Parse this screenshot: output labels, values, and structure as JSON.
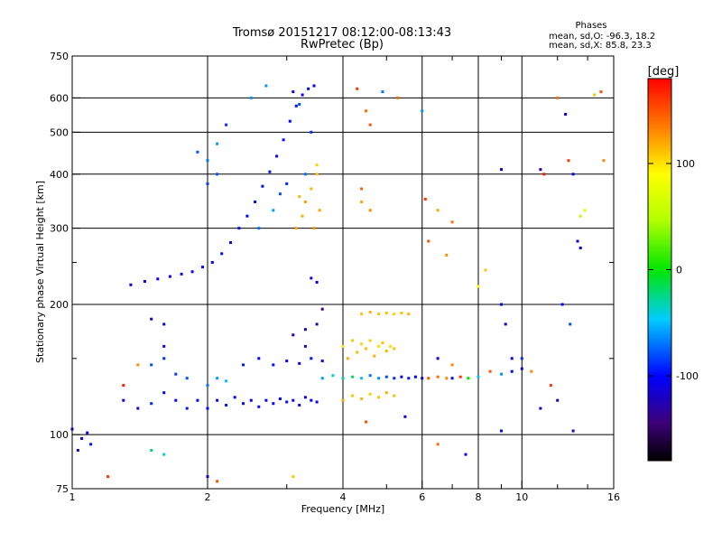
{
  "chart_data": {
    "type": "scatter",
    "title": "Tromsø 20151217 08:12:00-08:13:43",
    "subtitle": "RwPretec (Bp)",
    "xlabel": "Frequency [MHz]",
    "ylabel": "Stationary phase Virtual Height [km]",
    "x_scale": "log",
    "y_scale": "log",
    "xlim": [
      1,
      16
    ],
    "ylim": [
      75,
      750
    ],
    "x_ticks": [
      1,
      2,
      4,
      6,
      8,
      10,
      16
    ],
    "x_tick_labels": [
      "1",
      "2",
      "4",
      "6",
      "8",
      "10",
      "16"
    ],
    "x_grid": [
      2,
      4,
      6,
      8,
      10
    ],
    "y_ticks": [
      75,
      100,
      200,
      300,
      400,
      500,
      600,
      750
    ],
    "y_tick_labels": [
      "75",
      "100",
      "200",
      "300",
      "400",
      "500",
      "600",
      "750"
    ],
    "y_grid": [
      100,
      200,
      300,
      400,
      500,
      600
    ],
    "grid": true,
    "info": {
      "heading": "Phases",
      "line1": "mean, sd,O:  -96.3, 18.2",
      "line2": "mean, sd,X:  85.8, 23.3"
    },
    "colorbar": {
      "label": "[deg]",
      "range": [
        -180,
        180
      ],
      "ticks": [
        100,
        0,
        -100
      ],
      "tick_labels": [
        "100",
        "0",
        "-100"
      ]
    },
    "series": [
      {
        "points": [
          [
            1.0,
            103,
            -100
          ],
          [
            1.05,
            98,
            -110
          ],
          [
            1.03,
            92,
            -115
          ],
          [
            1.1,
            95,
            -95
          ],
          [
            1.08,
            101,
            -105
          ],
          [
            1.35,
            222,
            -115
          ],
          [
            1.45,
            226,
            -110
          ],
          [
            1.55,
            229,
            -105
          ],
          [
            1.65,
            232,
            -100
          ],
          [
            1.75,
            235,
            -98
          ],
          [
            1.85,
            238,
            -100
          ],
          [
            1.95,
            244,
            -97
          ],
          [
            2.05,
            250,
            -100
          ],
          [
            2.15,
            262,
            -97
          ],
          [
            2.25,
            278,
            -100
          ],
          [
            2.35,
            300,
            -97
          ],
          [
            2.45,
            320,
            -100
          ],
          [
            2.55,
            345,
            -97
          ],
          [
            2.65,
            375,
            -100
          ],
          [
            2.75,
            405,
            -97
          ],
          [
            2.85,
            440,
            -100
          ],
          [
            2.95,
            480,
            -97
          ],
          [
            3.05,
            530,
            -100
          ],
          [
            3.15,
            575,
            -97
          ],
          [
            3.25,
            610,
            -100
          ],
          [
            3.35,
            630,
            -97
          ],
          [
            3.45,
            640,
            -100
          ],
          [
            1.9,
            450,
            -80
          ],
          [
            2.0,
            430,
            -70
          ],
          [
            2.1,
            470,
            -60
          ],
          [
            2.2,
            520,
            -90
          ],
          [
            2.0,
            380,
            -85
          ],
          [
            2.1,
            400,
            -80
          ],
          [
            2.6,
            300,
            -70
          ],
          [
            2.8,
            330,
            -60
          ],
          [
            2.9,
            360,
            -80
          ],
          [
            3.0,
            380,
            -90
          ],
          [
            3.3,
            400,
            -70
          ],
          [
            2.5,
            600,
            -60
          ],
          [
            2.7,
            640,
            -60
          ],
          [
            3.1,
            620,
            -110
          ],
          [
            3.2,
            580,
            -80
          ],
          [
            3.4,
            500,
            -90
          ],
          [
            1.5,
            185,
            -120
          ],
          [
            1.6,
            180,
            -100
          ],
          [
            3.15,
            300,
            120
          ],
          [
            3.25,
            320,
            118
          ],
          [
            3.3,
            345,
            122
          ],
          [
            3.4,
            370,
            115
          ],
          [
            3.5,
            400,
            110
          ],
          [
            3.45,
            300,
            125
          ],
          [
            3.55,
            330,
            120
          ],
          [
            3.2,
            355,
            115
          ],
          [
            3.5,
            420,
            105
          ],
          [
            1.3,
            120,
            -110
          ],
          [
            1.4,
            115,
            -120
          ],
          [
            1.5,
            118,
            -90
          ],
          [
            1.6,
            125,
            -100
          ],
          [
            1.7,
            120,
            -100
          ],
          [
            1.8,
            115,
            -95
          ],
          [
            1.9,
            120,
            -100
          ],
          [
            2.0,
            115,
            -98
          ],
          [
            2.1,
            120,
            -100
          ],
          [
            2.2,
            117,
            -95
          ],
          [
            2.3,
            122,
            -102
          ],
          [
            2.4,
            118,
            -98
          ],
          [
            2.5,
            120,
            -100
          ],
          [
            2.6,
            116,
            -97
          ],
          [
            2.7,
            120,
            -102
          ],
          [
            2.8,
            118,
            -99
          ],
          [
            2.9,
            121,
            -101
          ],
          [
            3.0,
            119,
            -98
          ],
          [
            3.1,
            120,
            -100
          ],
          [
            3.2,
            117,
            -97
          ],
          [
            3.3,
            122,
            -102
          ],
          [
            3.4,
            120,
            -105
          ],
          [
            3.5,
            119,
            -110
          ],
          [
            2.4,
            145,
            -95
          ],
          [
            2.6,
            150,
            -100
          ],
          [
            2.8,
            145,
            -97
          ],
          [
            3.0,
            148,
            -100
          ],
          [
            3.2,
            146,
            -102
          ],
          [
            3.4,
            150,
            -98
          ],
          [
            3.6,
            148,
            -100
          ],
          [
            3.1,
            170,
            -120
          ],
          [
            3.3,
            175,
            -125
          ],
          [
            3.5,
            180,
            -130
          ],
          [
            3.6,
            195,
            -140
          ],
          [
            3.4,
            230,
            -115
          ],
          [
            3.5,
            225,
            -110
          ],
          [
            3.3,
            160,
            -130
          ],
          [
            1.5,
            145,
            -80
          ],
          [
            1.6,
            150,
            -90
          ],
          [
            1.7,
            138,
            -85
          ],
          [
            1.8,
            135,
            -80
          ],
          [
            2.0,
            130,
            -70
          ],
          [
            2.1,
            135,
            -60
          ],
          [
            2.2,
            133,
            -50
          ],
          [
            1.3,
            130,
            170
          ],
          [
            1.4,
            145,
            130
          ],
          [
            1.6,
            160,
            -100
          ],
          [
            4.0,
            160,
            100
          ],
          [
            4.1,
            150,
            120
          ],
          [
            4.2,
            165,
            110
          ],
          [
            4.3,
            155,
            115
          ],
          [
            4.4,
            162,
            105
          ],
          [
            4.5,
            158,
            112
          ],
          [
            4.6,
            165,
            108
          ],
          [
            4.7,
            152,
            118
          ],
          [
            4.8,
            160,
            100
          ],
          [
            4.9,
            163,
            110
          ],
          [
            5.0,
            156,
            115
          ],
          [
            5.1,
            160,
            102
          ],
          [
            5.2,
            158,
            110
          ],
          [
            4.4,
            190,
            110
          ],
          [
            4.6,
            192,
            115
          ],
          [
            4.8,
            190,
            108
          ],
          [
            5.0,
            191,
            112
          ],
          [
            5.2,
            190,
            105
          ],
          [
            5.4,
            191,
            110
          ],
          [
            5.6,
            190,
            115
          ],
          [
            4.0,
            120,
            120
          ],
          [
            4.2,
            123,
            110
          ],
          [
            4.4,
            121,
            115
          ],
          [
            4.6,
            124,
            105
          ],
          [
            4.8,
            122,
            110
          ],
          [
            5.0,
            125,
            118
          ],
          [
            5.2,
            123,
            112
          ],
          [
            3.6,
            135,
            -60
          ],
          [
            3.8,
            137,
            -40
          ],
          [
            4.0,
            135,
            -30
          ],
          [
            4.2,
            136,
            -20
          ],
          [
            4.4,
            135,
            -50
          ],
          [
            4.6,
            137,
            -70
          ],
          [
            4.8,
            135,
            -60
          ],
          [
            5.0,
            136,
            -80
          ],
          [
            5.2,
            135,
            -90
          ],
          [
            5.4,
            136,
            -100
          ],
          [
            5.6,
            135,
            -95
          ],
          [
            5.8,
            136,
            -100
          ],
          [
            6.0,
            135,
            -110
          ],
          [
            6.2,
            135,
            150
          ],
          [
            6.5,
            136,
            140
          ],
          [
            6.8,
            135,
            130
          ],
          [
            7.0,
            135,
            -100
          ],
          [
            7.3,
            136,
            160
          ],
          [
            7.6,
            135,
            0
          ],
          [
            8.0,
            136,
            -50
          ],
          [
            8.5,
            140,
            150
          ],
          [
            9.0,
            138,
            -60
          ],
          [
            9.5,
            140,
            -100
          ],
          [
            10.0,
            142,
            -110
          ],
          [
            10.5,
            140,
            130
          ],
          [
            1.2,
            80,
            160
          ],
          [
            1.5,
            92,
            -20
          ],
          [
            1.6,
            90,
            -40
          ],
          [
            2.0,
            80,
            -110
          ],
          [
            2.1,
            78,
            150
          ],
          [
            3.1,
            80,
            110
          ],
          [
            4.3,
            630,
            160
          ],
          [
            4.5,
            560,
            140
          ],
          [
            4.6,
            520,
            150
          ],
          [
            4.4,
            370,
            145
          ],
          [
            4.4,
            345,
            120
          ],
          [
            4.6,
            330,
            130
          ],
          [
            4.9,
            620,
            -70
          ],
          [
            5.3,
            600,
            140
          ],
          [
            6.0,
            560,
            -60
          ],
          [
            6.1,
            350,
            160
          ],
          [
            6.5,
            330,
            120
          ],
          [
            7.0,
            310,
            140
          ],
          [
            6.2,
            280,
            150
          ],
          [
            6.8,
            260,
            130
          ],
          [
            8.0,
            220,
            90
          ],
          [
            8.3,
            240,
            110
          ],
          [
            9.0,
            200,
            -110
          ],
          [
            9.2,
            180,
            -120
          ],
          [
            9.5,
            150,
            -110
          ],
          [
            10.0,
            150,
            -90
          ],
          [
            9.0,
            410,
            -110
          ],
          [
            11.0,
            410,
            -130
          ],
          [
            11.2,
            400,
            170
          ],
          [
            12.0,
            600,
            140
          ],
          [
            12.5,
            550,
            -110
          ],
          [
            12.7,
            430,
            160
          ],
          [
            13.0,
            400,
            -100
          ],
          [
            13.3,
            280,
            -110
          ],
          [
            13.5,
            270,
            -100
          ],
          [
            13.5,
            320,
            50
          ],
          [
            13.8,
            330,
            70
          ],
          [
            12.3,
            200,
            -100
          ],
          [
            12.8,
            180,
            -80
          ],
          [
            14.5,
            610,
            110
          ],
          [
            15.0,
            620,
            150
          ],
          [
            15.2,
            430,
            130
          ],
          [
            11.6,
            130,
            160
          ],
          [
            11.0,
            115,
            -110
          ],
          [
            12.0,
            120,
            -120
          ],
          [
            13.0,
            102,
            -110
          ],
          [
            9.0,
            102,
            -100
          ],
          [
            6.5,
            95,
            140
          ],
          [
            7.5,
            90,
            -100
          ],
          [
            4.5,
            107,
            150
          ],
          [
            5.5,
            110,
            -110
          ],
          [
            6.5,
            150,
            -110
          ],
          [
            7.0,
            145,
            130
          ]
        ]
      }
    ]
  }
}
